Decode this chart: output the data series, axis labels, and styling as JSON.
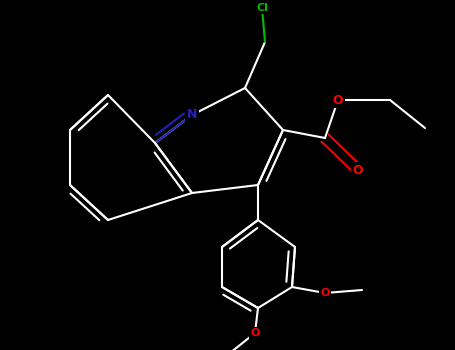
{
  "bg_color": "#000000",
  "bond_color": "#ffffff",
  "N_color": "#2222bb",
  "O_color": "#ff0000",
  "Cl_color": "#00bb00",
  "bond_width": 1.5,
  "figsize": [
    4.55,
    3.5
  ],
  "dpi": 100,
  "xlim": [
    0,
    455
  ],
  "ylim": [
    0,
    350
  ]
}
